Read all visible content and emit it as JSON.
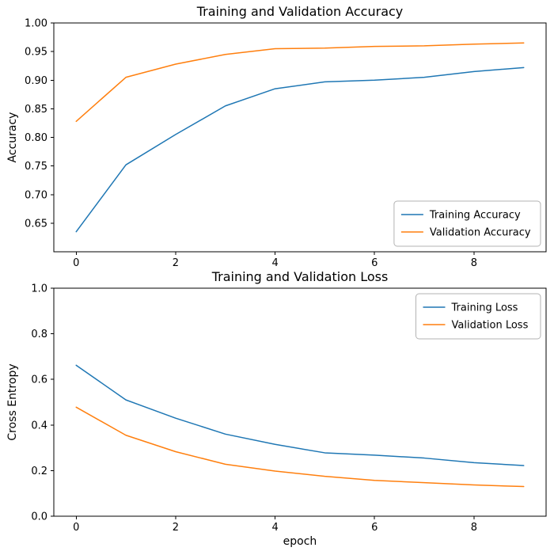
{
  "figure": {
    "background": "#ffffff",
    "text_color": "#000000",
    "spine_color": "#000000",
    "legend_border_color": "#b3b3b3"
  },
  "chart_data": [
    {
      "id": "accuracy",
      "type": "line",
      "title": "Training and Validation Accuracy",
      "xlabel": "",
      "ylabel": "Accuracy",
      "grid": false,
      "legend_position": "lower-right",
      "x": [
        0,
        1,
        2,
        3,
        4,
        5,
        6,
        7,
        8,
        9
      ],
      "xlim": [
        -0.45,
        9.45
      ],
      "ylim": [
        0.6,
        1.0
      ],
      "xticks": [
        0,
        2,
        4,
        6,
        8
      ],
      "xtick_labels": [
        "0",
        "2",
        "4",
        "6",
        "8"
      ],
      "yticks": [
        0.65,
        0.7,
        0.75,
        0.8,
        0.85,
        0.9,
        0.95,
        1.0
      ],
      "ytick_labels": [
        "0.65",
        "0.70",
        "0.75",
        "0.80",
        "0.85",
        "0.90",
        "0.95",
        "1.00"
      ],
      "series": [
        {
          "name": "Training Accuracy",
          "color": "#1f77b4",
          "values": [
            0.635,
            0.752,
            0.805,
            0.855,
            0.885,
            0.897,
            0.9,
            0.905,
            0.915,
            0.922
          ]
        },
        {
          "name": "Validation Accuracy",
          "color": "#ff7f0e",
          "values": [
            0.828,
            0.905,
            0.928,
            0.945,
            0.955,
            0.956,
            0.959,
            0.96,
            0.963,
            0.965
          ]
        }
      ]
    },
    {
      "id": "loss",
      "type": "line",
      "title": "Training and Validation Loss",
      "xlabel": "epoch",
      "ylabel": "Cross Entropy",
      "grid": false,
      "legend_position": "upper-right",
      "x": [
        0,
        1,
        2,
        3,
        4,
        5,
        6,
        7,
        8,
        9
      ],
      "xlim": [
        -0.45,
        9.45
      ],
      "ylim": [
        0.0,
        1.0
      ],
      "xticks": [
        0,
        2,
        4,
        6,
        8
      ],
      "xtick_labels": [
        "0",
        "2",
        "4",
        "6",
        "8"
      ],
      "yticks": [
        0.0,
        0.2,
        0.4,
        0.6,
        0.8,
        1.0
      ],
      "ytick_labels": [
        "0.0",
        "0.2",
        "0.4",
        "0.6",
        "0.8",
        "1.0"
      ],
      "series": [
        {
          "name": "Training Loss",
          "color": "#1f77b4",
          "values": [
            0.662,
            0.51,
            0.43,
            0.36,
            0.315,
            0.278,
            0.268,
            0.255,
            0.235,
            0.222
          ]
        },
        {
          "name": "Validation Loss",
          "color": "#ff7f0e",
          "values": [
            0.478,
            0.355,
            0.283,
            0.228,
            0.198,
            0.175,
            0.157,
            0.147,
            0.137,
            0.13
          ]
        }
      ]
    }
  ]
}
